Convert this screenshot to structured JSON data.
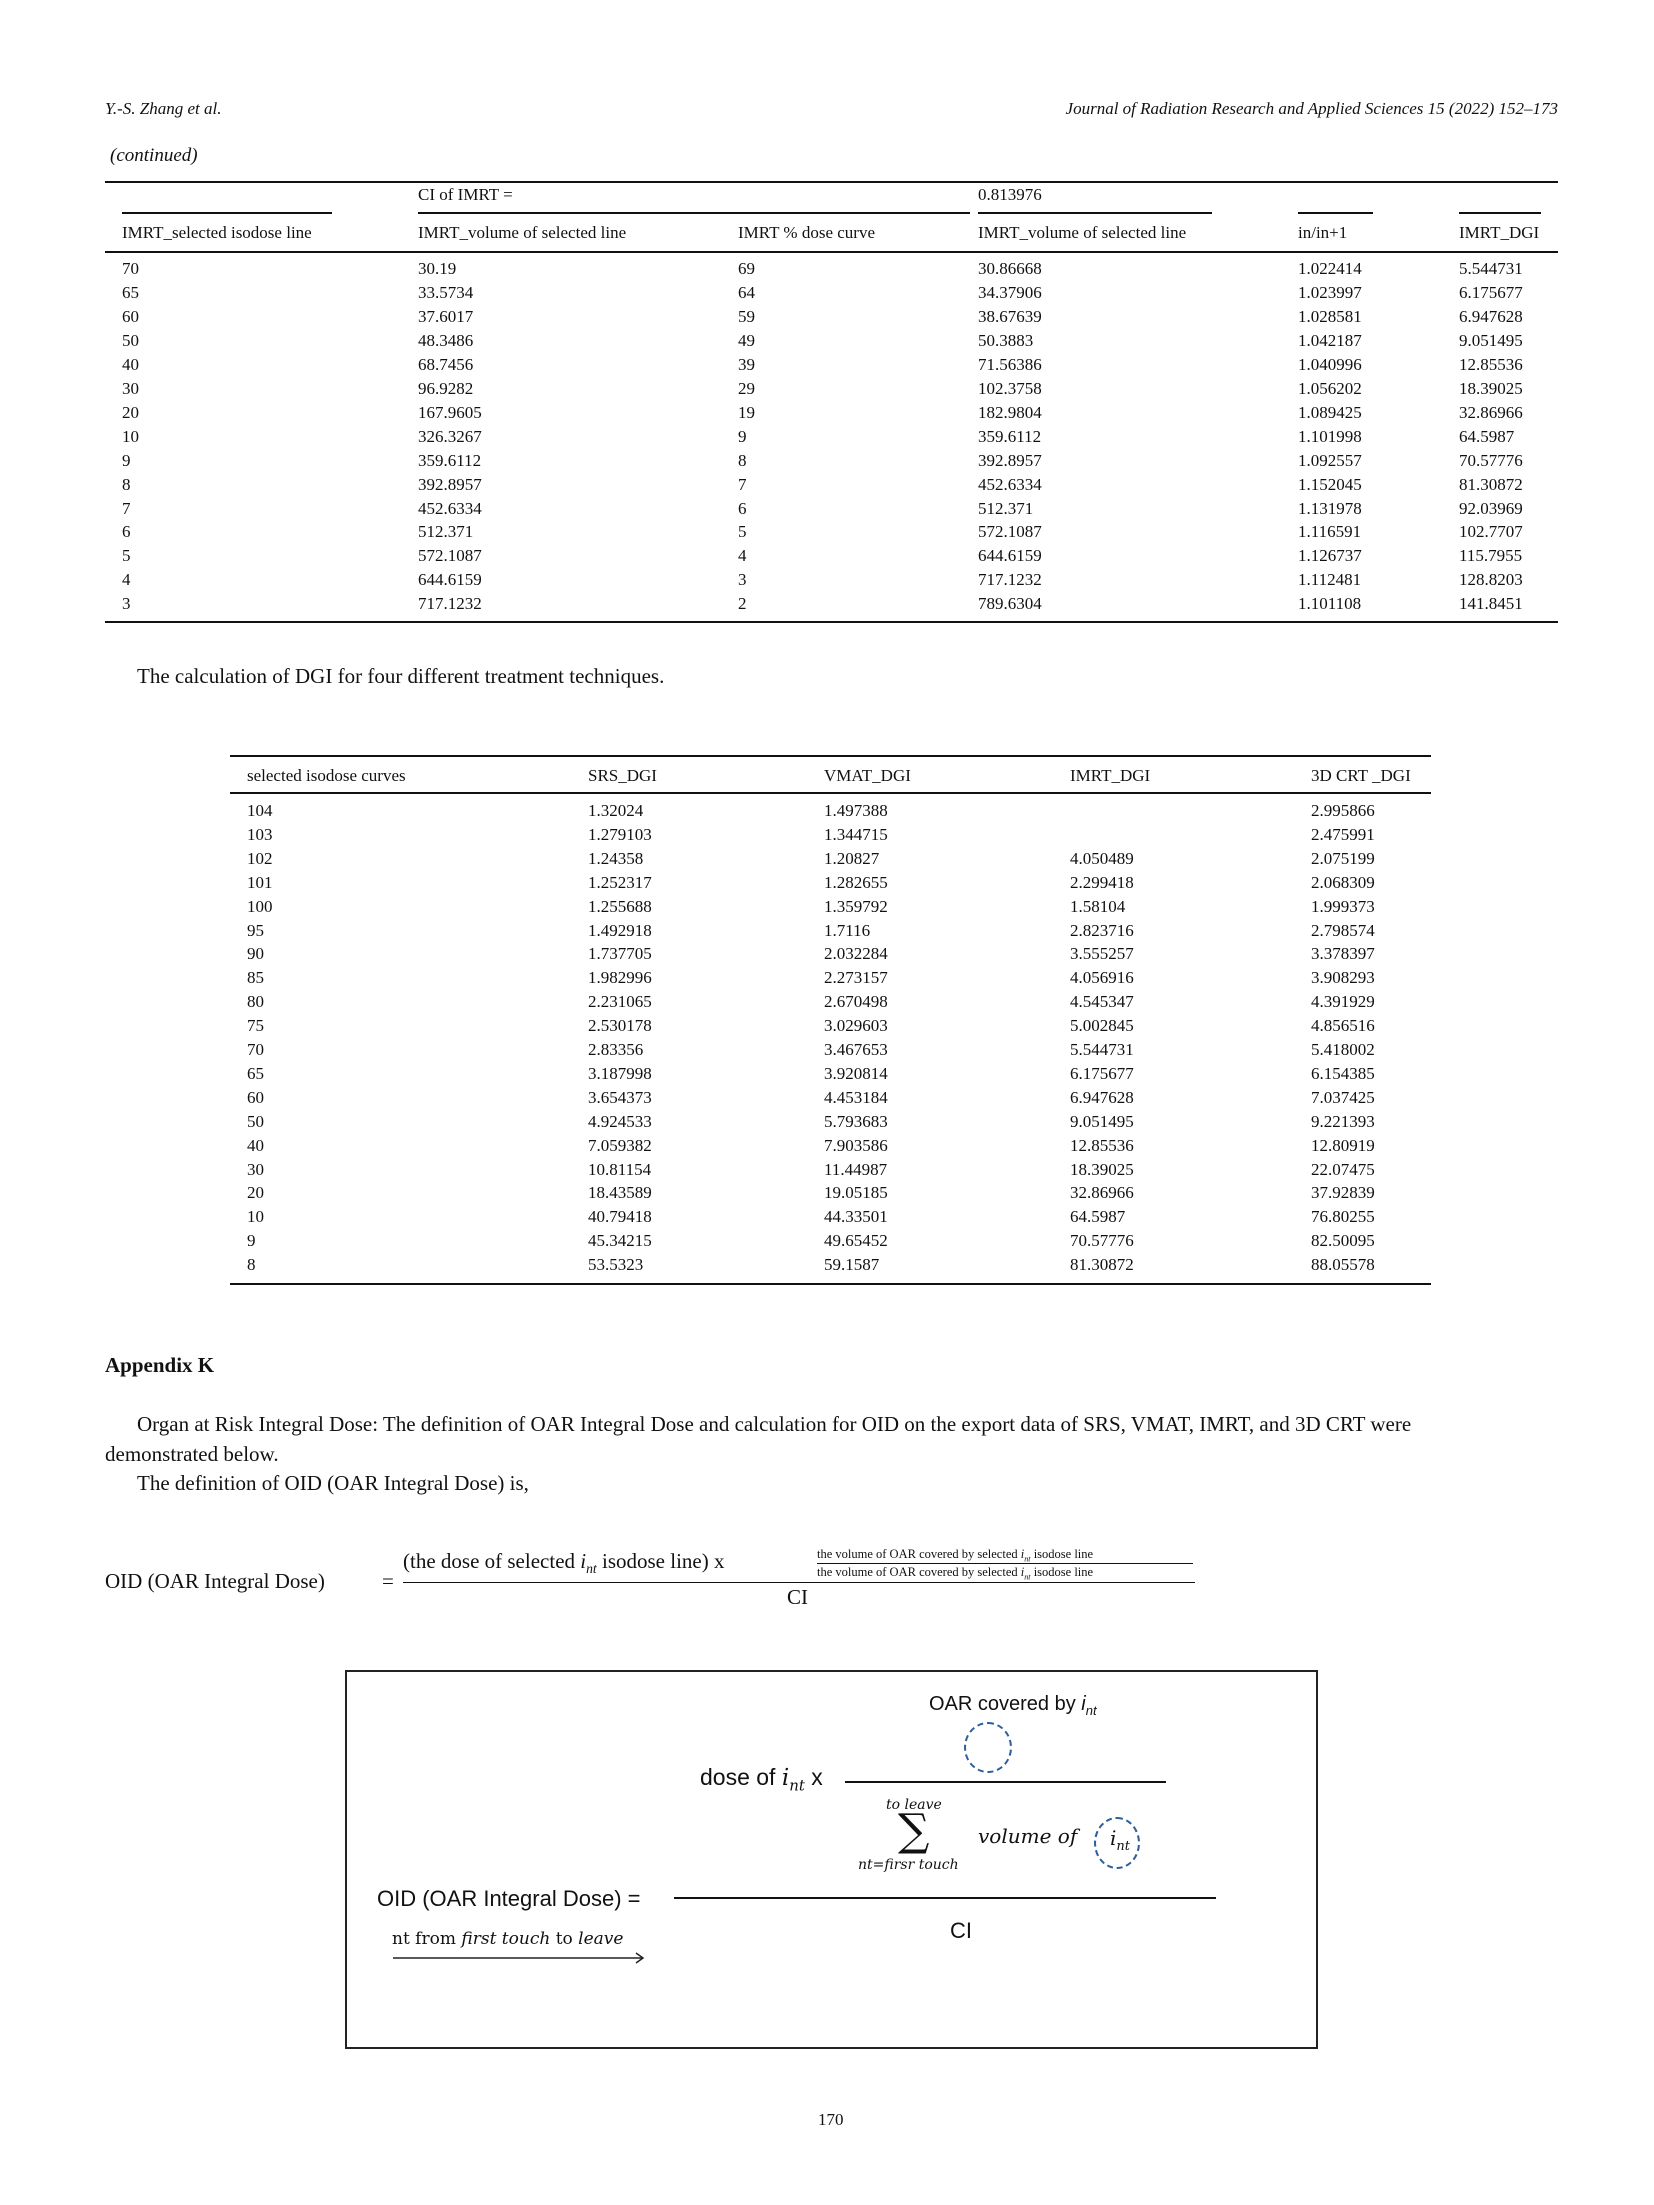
{
  "header": {
    "authors": "Y.-S. Zhang et al.",
    "journal": "Journal of Radiation Research and Applied Sciences 15 (2022) 152–173"
  },
  "continued_label": "(continued)",
  "table1": {
    "ci_label": "CI of IMRT =",
    "ci_value": "0.813976",
    "columns": [
      "IMRT_selected isodose line",
      "IMRT_volume of selected line",
      "IMRT % dose curve",
      "IMRT_volume of selected line",
      "in/in+1",
      "IMRT_DGI"
    ],
    "rows": [
      [
        "70",
        "30.19",
        "69",
        "30.86668",
        "1.022414",
        "5.544731"
      ],
      [
        "65",
        "33.5734",
        "64",
        "34.37906",
        "1.023997",
        "6.175677"
      ],
      [
        "60",
        "37.6017",
        "59",
        "38.67639",
        "1.028581",
        "6.947628"
      ],
      [
        "50",
        "48.3486",
        "49",
        "50.3883",
        "1.042187",
        "9.051495"
      ],
      [
        "40",
        "68.7456",
        "39",
        "71.56386",
        "1.040996",
        "12.85536"
      ],
      [
        "30",
        "96.9282",
        "29",
        "102.3758",
        "1.056202",
        "18.39025"
      ],
      [
        "20",
        "167.9605",
        "19",
        "182.9804",
        "1.089425",
        "32.86966"
      ],
      [
        "10",
        "326.3267",
        "9",
        "359.6112",
        "1.101998",
        "64.5987"
      ],
      [
        "9",
        "359.6112",
        "8",
        "392.8957",
        "1.092557",
        "70.57776"
      ],
      [
        "8",
        "392.8957",
        "7",
        "452.6334",
        "1.152045",
        "81.30872"
      ],
      [
        "7",
        "452.6334",
        "6",
        "512.371",
        "1.131978",
        "92.03969"
      ],
      [
        "6",
        "512.371",
        "5",
        "572.1087",
        "1.116591",
        "102.7707"
      ],
      [
        "5",
        "572.1087",
        "4",
        "644.6159",
        "1.126737",
        "115.7955"
      ],
      [
        "4",
        "644.6159",
        "3",
        "717.1232",
        "1.112481",
        "128.8203"
      ],
      [
        "3",
        "717.1232",
        "2",
        "789.6304",
        "1.101108",
        "141.8451"
      ]
    ]
  },
  "table2": {
    "caption": "The calculation of DGI for four different treatment techniques.",
    "columns": [
      "selected isodose curves",
      "SRS_DGI",
      "VMAT_DGI",
      "IMRT_DGI",
      "3D CRT _DGI"
    ],
    "rows": [
      [
        "104",
        "1.32024",
        "1.497388",
        "",
        "2.995866"
      ],
      [
        "103",
        "1.279103",
        "1.344715",
        "",
        "2.475991"
      ],
      [
        "102",
        "1.24358",
        "1.20827",
        "4.050489",
        "2.075199"
      ],
      [
        "101",
        "1.252317",
        "1.282655",
        "2.299418",
        "2.068309"
      ],
      [
        "100",
        "1.255688",
        "1.359792",
        "1.58104",
        "1.999373"
      ],
      [
        "95",
        "1.492918",
        "1.7116",
        "2.823716",
        "2.798574"
      ],
      [
        "90",
        "1.737705",
        "2.032284",
        "3.555257",
        "3.378397"
      ],
      [
        "85",
        "1.982996",
        "2.273157",
        "4.056916",
        "3.908293"
      ],
      [
        "80",
        "2.231065",
        "2.670498",
        "4.545347",
        "4.391929"
      ],
      [
        "75",
        "2.530178",
        "3.029603",
        "5.002845",
        "4.856516"
      ],
      [
        "70",
        "2.83356",
        "3.467653",
        "5.544731",
        "5.418002"
      ],
      [
        "65",
        "3.187998",
        "3.920814",
        "6.175677",
        "6.154385"
      ],
      [
        "60",
        "3.654373",
        "4.453184",
        "6.947628",
        "7.037425"
      ],
      [
        "50",
        "4.924533",
        "5.793683",
        "9.051495",
        "9.221393"
      ],
      [
        "40",
        "7.059382",
        "7.903586",
        "12.85536",
        "12.80919"
      ],
      [
        "30",
        "10.81154",
        "11.44987",
        "18.39025",
        "22.07475"
      ],
      [
        "20",
        "18.43589",
        "19.05185",
        "32.86966",
        "37.92839"
      ],
      [
        "10",
        "40.79418",
        "44.33501",
        "64.5987",
        "76.80255"
      ],
      [
        "9",
        "45.34215",
        "49.65452",
        "70.57776",
        "82.50095"
      ],
      [
        "8",
        "53.5323",
        "59.1587",
        "81.30872",
        "88.05578"
      ]
    ]
  },
  "appendix": {
    "heading": "Appendix K",
    "para1_line1": "Organ at Risk Integral Dose: The definition of OAR Integral Dose and calculation for OID on the export data of SRS, VMAT, IMRT, and 3D CRT were",
    "para1_line2": "demonstrated below.",
    "para2": "The definition of OID (OAR Integral Dose) is,"
  },
  "formula1": {
    "lhs": "OID  (OAR  Integral  Dose)",
    "equals": "=",
    "numerator_pre": "(the  dose  of  selected ",
    "i": "i",
    "nt": "nt",
    "numerator_post": "  isodose  line) x",
    "small_num_pre": "the volume of OAR covered by selected ",
    "small_num_post": " isodose line",
    "small_den_pre": "the volume of OAR covered by selected ",
    "small_den_post": " isodose line",
    "denominator": "CI"
  },
  "figure": {
    "oar_covered_by": "OAR covered by ",
    "dose_of": "dose of ",
    "times": " x",
    "to_leave": "to leave",
    "sigma": "∑",
    "sum_lower": "nt=firsr touch",
    "volume_of": "volume of",
    "lhs": "OID (OAR Integral Dose) =",
    "denominator": "CI",
    "nt_from": "nt from ",
    "first_touch": "first touch",
    "to": " to ",
    "leave": "leave",
    "i": "i",
    "nt": "nt",
    "blob_color": "#2f5f9a"
  },
  "page_number": "170"
}
